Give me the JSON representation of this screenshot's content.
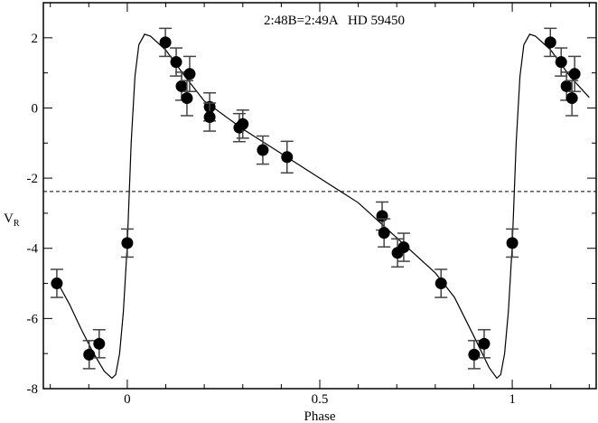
{
  "chart_data": {
    "type": "scatter",
    "title": "2:48B=2:49A   HD 59450",
    "xlabel": "Phase",
    "ylabel": "V",
    "ylabel_sub": "R",
    "xlim": [
      -0.218,
      1.218
    ],
    "ylim": [
      -8,
      3
    ],
    "xticks": [
      0,
      0.5,
      1
    ],
    "xtick_labels": [
      "0",
      "0.5",
      "1"
    ],
    "xminor": [
      -0.2,
      -0.1,
      0.1,
      0.2,
      0.3,
      0.4,
      0.6,
      0.7,
      0.8,
      0.9,
      1.1,
      1.2
    ],
    "yticks": [
      -8,
      -6,
      -4,
      -2,
      0,
      2
    ],
    "ytick_labels": [
      "-8",
      "-6",
      "-4",
      "-2",
      "0",
      "2"
    ],
    "grid": false,
    "reference_line": {
      "y": -2.38,
      "style": "dashed"
    },
    "points": [
      {
        "x": -0.183,
        "y": -5.0,
        "err": 0.4
      },
      {
        "x": -0.099,
        "y": -7.03,
        "err": 0.4
      },
      {
        "x": -0.073,
        "y": -6.72,
        "err": 0.4
      },
      {
        "x": 0.0,
        "y": -3.85,
        "err": 0.4
      },
      {
        "x": 0.099,
        "y": 1.87,
        "err": 0.4
      },
      {
        "x": 0.127,
        "y": 1.31,
        "err": 0.4
      },
      {
        "x": 0.141,
        "y": 0.62,
        "err": 0.4
      },
      {
        "x": 0.162,
        "y": 0.97,
        "err": 0.5
      },
      {
        "x": 0.155,
        "y": 0.28,
        "err": 0.5
      },
      {
        "x": 0.214,
        "y": 0.03,
        "err": 0.4
      },
      {
        "x": 0.214,
        "y": -0.26,
        "err": 0.4
      },
      {
        "x": 0.291,
        "y": -0.56,
        "err": 0.4
      },
      {
        "x": 0.3,
        "y": -0.46,
        "err": 0.4
      },
      {
        "x": 0.352,
        "y": -1.2,
        "err": 0.4
      },
      {
        "x": 0.415,
        "y": -1.4,
        "err": 0.45
      },
      {
        "x": 0.662,
        "y": -3.08,
        "err": 0.4
      },
      {
        "x": 0.667,
        "y": -3.56,
        "err": 0.4
      },
      {
        "x": 0.702,
        "y": -4.13,
        "err": 0.4
      },
      {
        "x": 0.718,
        "y": -3.97,
        "err": 0.4
      },
      {
        "x": 0.815,
        "y": -5.0,
        "err": 0.4
      },
      {
        "x": 0.901,
        "y": -7.03,
        "err": 0.4
      },
      {
        "x": 0.927,
        "y": -6.72,
        "err": 0.4
      },
      {
        "x": 1.0,
        "y": -3.85,
        "err": 0.4
      },
      {
        "x": 1.099,
        "y": 1.87,
        "err": 0.4
      },
      {
        "x": 1.127,
        "y": 1.31,
        "err": 0.4
      },
      {
        "x": 1.141,
        "y": 0.62,
        "err": 0.4
      },
      {
        "x": 1.162,
        "y": 0.97,
        "err": 0.5
      },
      {
        "x": 1.155,
        "y": 0.28,
        "err": 0.5
      }
    ],
    "fit_curve": [
      [
        -0.18,
        -5.0
      ],
      [
        -0.15,
        -5.6
      ],
      [
        -0.12,
        -6.3
      ],
      [
        -0.09,
        -6.95
      ],
      [
        -0.06,
        -7.5
      ],
      [
        -0.04,
        -7.7
      ],
      [
        -0.03,
        -7.6
      ],
      [
        -0.02,
        -7.0
      ],
      [
        -0.01,
        -5.8
      ],
      [
        0.0,
        -3.9
      ],
      [
        0.01,
        -1.0
      ],
      [
        0.02,
        0.9
      ],
      [
        0.03,
        1.8
      ],
      [
        0.045,
        2.1
      ],
      [
        0.06,
        2.05
      ],
      [
        0.1,
        1.65
      ],
      [
        0.15,
        0.9
      ],
      [
        0.2,
        0.2
      ],
      [
        0.3,
        -0.6
      ],
      [
        0.4,
        -1.3
      ],
      [
        0.5,
        -2.0
      ],
      [
        0.6,
        -2.7
      ],
      [
        0.7,
        -3.7
      ],
      [
        0.8,
        -4.7
      ],
      [
        0.85,
        -5.4
      ],
      [
        0.9,
        -6.5
      ],
      [
        0.94,
        -7.4
      ],
      [
        0.96,
        -7.7
      ],
      [
        0.97,
        -7.6
      ],
      [
        0.98,
        -7.0
      ],
      [
        0.99,
        -5.8
      ],
      [
        1.0,
        -3.9
      ],
      [
        1.01,
        -1.0
      ],
      [
        1.02,
        0.9
      ],
      [
        1.03,
        1.8
      ],
      [
        1.045,
        2.1
      ],
      [
        1.06,
        2.05
      ],
      [
        1.1,
        1.65
      ],
      [
        1.15,
        0.9
      ],
      [
        1.2,
        0.3
      ]
    ]
  }
}
